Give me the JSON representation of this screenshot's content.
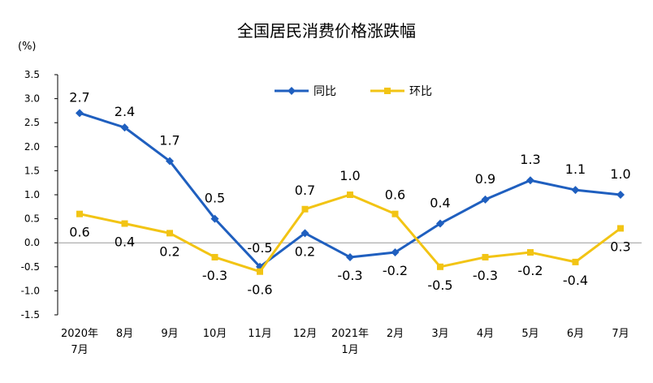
{
  "chart_data": {
    "type": "line",
    "title": "全国居民消费价格涨跌幅",
    "unit_label": "(%)",
    "categories": [
      "2020年\n7月",
      "8月",
      "9月",
      "10月",
      "11月",
      "12月",
      "2021年\n1月",
      "2月",
      "3月",
      "4月",
      "5月",
      "6月",
      "7月"
    ],
    "y_ticks": [
      "3.5",
      "3.0",
      "2.5",
      "2.0",
      "1.5",
      "1.0",
      "0.5",
      "0.0",
      "-0.5",
      "-1.0",
      "-1.5"
    ],
    "ylim": [
      -1.5,
      3.5
    ],
    "grid": false,
    "legend_position": "top-center",
    "series": [
      {
        "name": "同比",
        "color": "#1f5fbf",
        "marker": "diamond",
        "values": [
          2.7,
          2.4,
          1.7,
          0.5,
          -0.5,
          0.2,
          -0.3,
          -0.2,
          0.4,
          0.9,
          1.3,
          1.1,
          1.0
        ],
        "labels": [
          "2.7",
          "2.4",
          "1.7",
          "0.5",
          "-0.5",
          "0.2",
          "-0.3",
          "-0.2",
          "0.4",
          "0.9",
          "1.3",
          "1.1",
          "1.0"
        ]
      },
      {
        "name": "环比",
        "color": "#f2c414",
        "marker": "square",
        "values": [
          0.6,
          0.4,
          0.2,
          -0.3,
          -0.6,
          0.7,
          1.0,
          0.6,
          -0.5,
          -0.3,
          -0.2,
          -0.4,
          0.3
        ],
        "labels": [
          "0.6",
          "0.4",
          "0.2",
          "-0.3",
          "-0.6",
          "0.7",
          "1.0",
          "0.6",
          "-0.5",
          "-0.3",
          "-0.2",
          "-0.4",
          "0.3"
        ]
      }
    ]
  }
}
